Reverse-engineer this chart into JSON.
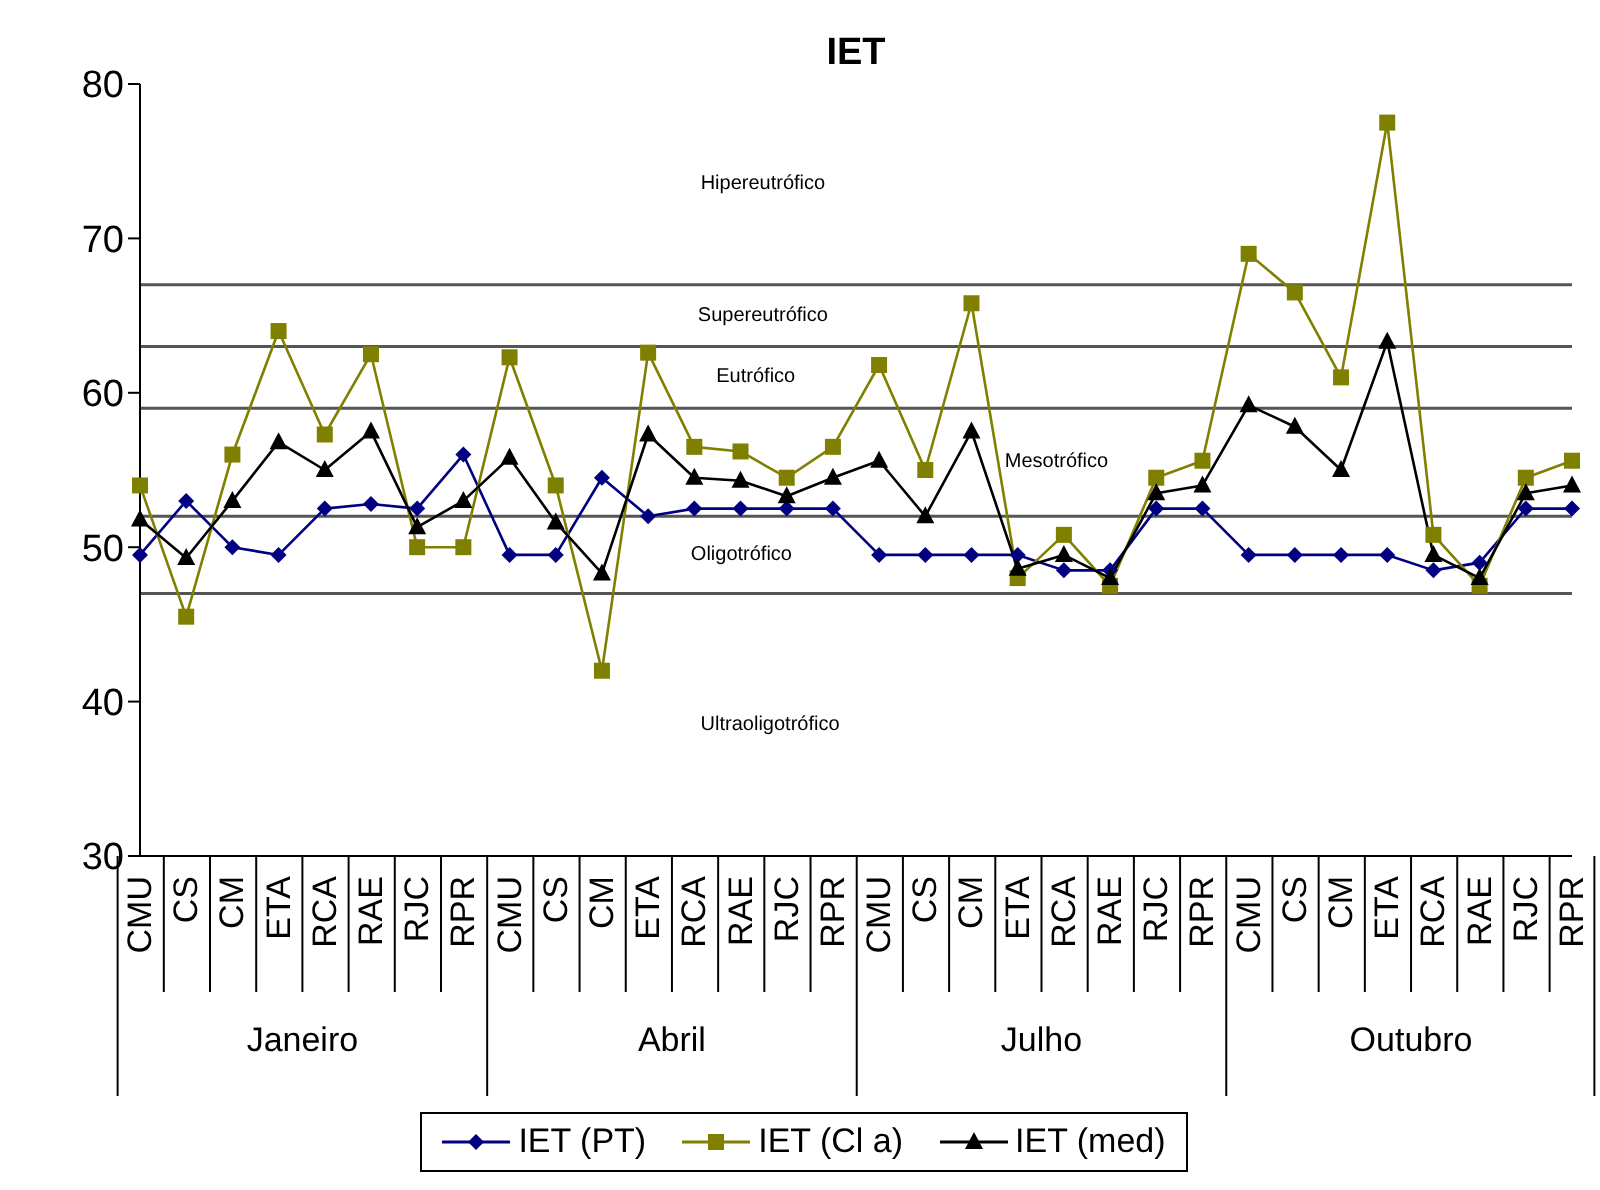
{
  "chart_data": {
    "type": "line",
    "title": "IET",
    "categories": [
      "CMU",
      "CS",
      "CM",
      "ETA",
      "RCA",
      "RAE",
      "RJC",
      "RPR",
      "CMU",
      "CS",
      "CM",
      "ETA",
      "RCA",
      "RAE",
      "RJC",
      "RPR",
      "CMU",
      "CS",
      "CM",
      "ETA",
      "RCA",
      "RAE",
      "RJC",
      "RPR",
      "CMU",
      "CS",
      "CM",
      "ETA",
      "RCA",
      "RAE",
      "RJC",
      "RPR"
    ],
    "annotations": [
      "Janeiro",
      "Abril",
      "Julho",
      "Outubro",
      "Hipereutrófico",
      "Supereutrófico",
      "Eutrófico",
      "Mesotrófico",
      "Oligotrófico",
      "Ultraoligotrófico"
    ],
    "series": [
      {
        "name": "IET (PT)",
        "color": "#000080",
        "marker": "diamond",
        "values": [
          49.5,
          53,
          50,
          49.5,
          52.5,
          52.8,
          52.5,
          56,
          49.5,
          49.5,
          54.5,
          52,
          52.5,
          52.5,
          52.5,
          52.5,
          49.5,
          49.5,
          49.5,
          49.5,
          48.5,
          48.5,
          52.5,
          52.5,
          49.5,
          49.5,
          49.5,
          49.5,
          48.5,
          49,
          52.5,
          52.5
        ]
      },
      {
        "name": "IET (Cl a)",
        "color": "#808000",
        "marker": "square",
        "values": [
          54,
          45.5,
          56,
          64,
          57.3,
          62.5,
          50,
          50,
          62.3,
          54,
          42,
          62.6,
          56.5,
          56.2,
          54.5,
          56.5,
          61.8,
          55,
          65.8,
          48,
          50.8,
          47.5,
          54.5,
          55.6,
          69,
          66.5,
          61,
          77.5,
          50.8,
          47.5,
          54.5,
          55.6
        ]
      },
      {
        "name": "IET (med)",
        "color": "#000000",
        "marker": "triangle",
        "values": [
          51.8,
          49.3,
          53,
          56.8,
          55,
          57.5,
          51.3,
          53,
          55.8,
          51.6,
          48.3,
          57.3,
          54.5,
          54.3,
          53.3,
          54.5,
          55.6,
          52,
          57.5,
          48.6,
          49.5,
          48,
          53.5,
          54,
          59.2,
          57.8,
          55,
          63.3,
          49.5,
          48,
          53.5,
          54
        ]
      }
    ],
    "ylim": [
      30,
      80
    ],
    "yticks": [
      30,
      40,
      50,
      60,
      70,
      80
    ],
    "ref_lines": [
      {
        "axis": "y",
        "value": 47
      },
      {
        "axis": "y",
        "value": 52
      },
      {
        "axis": "y",
        "value": 59
      },
      {
        "axis": "y",
        "value": 63
      },
      {
        "axis": "y",
        "value": 67
      }
    ],
    "legend": "bottom"
  }
}
